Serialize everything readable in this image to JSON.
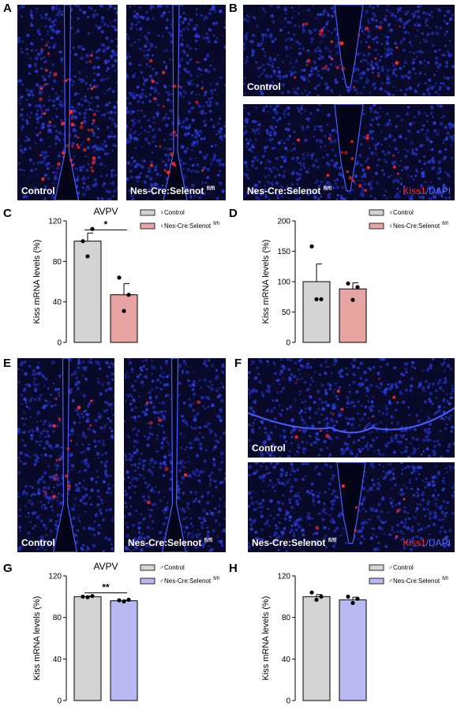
{
  "panels": {
    "A": {
      "letter": "A",
      "left_label": "Control",
      "right_label": "Nes-Cre:Selenot",
      "right_sup": "fl/fl"
    },
    "B": {
      "letter": "B",
      "top_label": "Control",
      "bottom_label": "Nes-Cre:Selenot",
      "bottom_sup": "fl/fl",
      "stain_red": "Kiss1",
      "stain_sep": "/",
      "stain_blue": "DAPI"
    },
    "C": {
      "letter": "C"
    },
    "D": {
      "letter": "D"
    },
    "E": {
      "letter": "E",
      "left_label": "Control",
      "right_label": "Nes-Cre:Selenot",
      "right_sup": "fl/fl"
    },
    "F": {
      "letter": "F",
      "top_label": "Control",
      "bottom_label": "Nes-Cre:Selenot",
      "bottom_sup": "fl/fl",
      "stain_red": "Kiss1",
      "stain_sep": "/",
      "stain_blue": "DAPI"
    },
    "G": {
      "letter": "G"
    },
    "H": {
      "letter": "H"
    }
  },
  "colors": {
    "control_fill": "#d3d3d3",
    "female_ko_fill": "#e8a3a3",
    "male_ko_fill": "#b9b9f2",
    "dapi": "#2233cc",
    "kiss1": "#ff2a2a"
  },
  "chart_data": [
    {
      "id": "C",
      "type": "bar",
      "title": "AVPV",
      "ylabel": "Kiss mRNA levels (%)",
      "ylim": [
        0,
        120
      ],
      "yticks": [
        0,
        40,
        80,
        120
      ],
      "categories": [
        "Control",
        "Nes-Cre:Selenot"
      ],
      "series": [
        {
          "name": "♀Control",
          "sup": "",
          "value": 100,
          "sem": 8,
          "points": [
            100,
            112,
            85
          ]
        },
        {
          "name": "♀Nes-Cre:Selenot",
          "sup": "fl/fl",
          "value": 47,
          "sem": 11,
          "points": [
            64,
            47,
            31
          ]
        }
      ],
      "significance": "*",
      "legend": "top-right"
    },
    {
      "id": "D",
      "type": "bar",
      "title": "",
      "ylabel": "Kiss mRNA levels (%)",
      "ylim": [
        0,
        200
      ],
      "yticks": [
        0,
        50,
        100,
        150,
        200
      ],
      "categories": [
        "Control",
        "Nes-Cre:Selenot"
      ],
      "series": [
        {
          "name": "♀Control",
          "sup": "",
          "value": 100,
          "sem": 29,
          "points": [
            158,
            71,
            71
          ]
        },
        {
          "name": "♀Nes-Cre:Selenot",
          "sup": "fl/fl",
          "value": 88,
          "sem": 10,
          "points": [
            97,
            91,
            70
          ]
        }
      ],
      "significance": "",
      "legend": "top-right"
    },
    {
      "id": "G",
      "type": "bar",
      "title": "AVPV",
      "ylabel": "Kiss mRNA levels (%)",
      "ylim": [
        0,
        120
      ],
      "yticks": [
        0,
        40,
        80,
        120
      ],
      "categories": [
        "Control",
        "Nes-Cre:Selenot"
      ],
      "series": [
        {
          "name": "♂Control",
          "sup": "",
          "value": 100,
          "sem": 0.6,
          "points": [
            100,
            100.6,
            99.5
          ]
        },
        {
          "name": "♂Nes-Cre:Selenot",
          "sup": "fl/fl",
          "value": 96,
          "sem": 0.6,
          "points": [
            96.5,
            97,
            95.5
          ]
        }
      ],
      "significance": "**",
      "legend": "top-right"
    },
    {
      "id": "H",
      "type": "bar",
      "title": "",
      "ylabel": "Kiss mRNA levels (%)",
      "ylim": [
        0,
        120
      ],
      "yticks": [
        0,
        40,
        80,
        120
      ],
      "categories": [
        "Control",
        "Nes-Cre:Selenot"
      ],
      "series": [
        {
          "name": "♂Control",
          "sup": "",
          "value": 100,
          "sem": 2,
          "points": [
            104,
            100,
            97
          ]
        },
        {
          "name": "♂Nes-Cre:Selenot",
          "sup": "fl/fl",
          "value": 97,
          "sem": 2.5,
          "points": [
            100,
            98,
            94
          ]
        }
      ],
      "significance": "",
      "legend": "top-right"
    }
  ]
}
